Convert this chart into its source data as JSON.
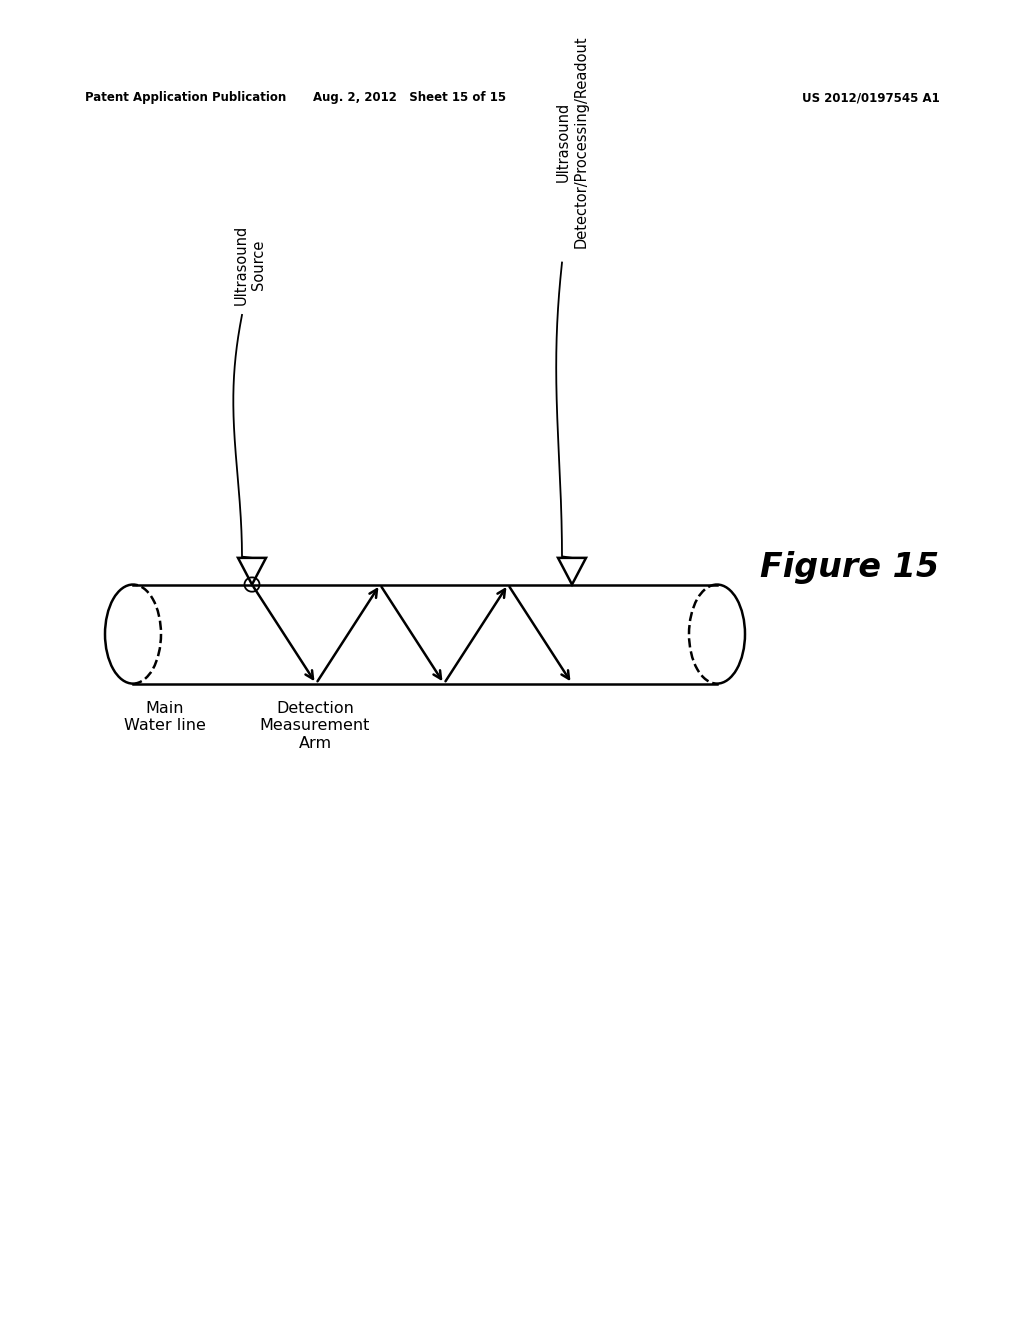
{
  "background_color": "#ffffff",
  "header_left": "Patent Application Publication",
  "header_center": "Aug. 2, 2012   Sheet 15 of 15",
  "header_right": "US 2012/0197545 A1",
  "figure_label": "Figure 15",
  "label_ultrasound_source": "Ultrasound\nSource",
  "label_ultrasound_detector": "Ultrasound\nDetector/Processing/Readout",
  "label_main_water": "Main\nWater line",
  "label_detection": "Detection\nMeasurement\nArm",
  "pipe_color": "#000000",
  "line_color": "#000000"
}
